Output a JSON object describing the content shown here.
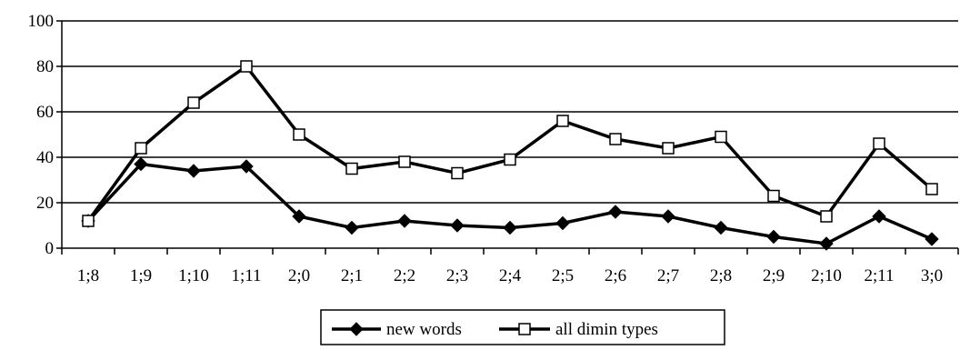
{
  "chart_data": {
    "type": "line",
    "title": "",
    "xlabel": "",
    "ylabel": "",
    "categories": [
      "1;8",
      "1;9",
      "1;10",
      "1;11",
      "2;0",
      "2;1",
      "2;2",
      "2;3",
      "2;4",
      "2;5",
      "2;6",
      "2;7",
      "2;8",
      "2;9",
      "2;10",
      "2;11",
      "3;0"
    ],
    "ylim": [
      0,
      100
    ],
    "yticks": [
      0,
      20,
      40,
      60,
      80,
      100
    ],
    "grid": true,
    "legend_position": "bottom",
    "series": [
      {
        "name": "new words",
        "marker": "filled-diamond",
        "color": "#000000",
        "values": [
          12,
          37,
          34,
          36,
          14,
          9,
          12,
          10,
          9,
          11,
          16,
          14,
          9,
          5,
          2,
          14,
          4
        ]
      },
      {
        "name": "all dimin types",
        "marker": "hollow-square",
        "color": "#000000",
        "values": [
          12,
          44,
          64,
          80,
          50,
          35,
          38,
          33,
          39,
          56,
          48,
          44,
          49,
          23,
          14,
          46,
          26
        ]
      }
    ]
  }
}
